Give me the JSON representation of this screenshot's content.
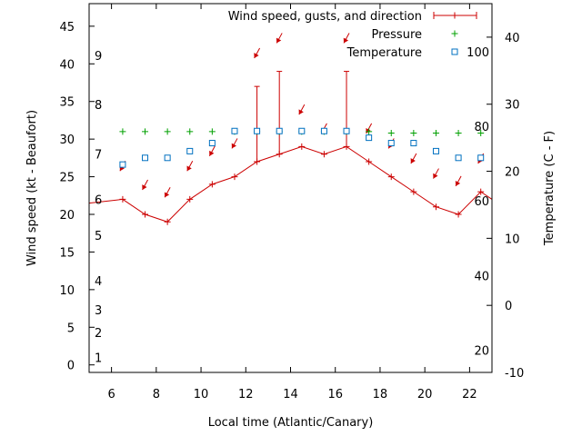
{
  "chart_data": {
    "type": "line",
    "xlabel": "Local time (Atlantic/Canary)",
    "ylabel_left": "Wind speed (kt - Beaufort)",
    "ylabel_right": "Temperature (C - F)",
    "xlim": [
      5,
      23
    ],
    "ylim_left": [
      -1,
      48
    ],
    "ylim_right": [
      -10,
      45
    ],
    "x_ticks": [
      6,
      8,
      10,
      12,
      14,
      16,
      18,
      20,
      22
    ],
    "y_left_ticks": [
      0,
      5,
      10,
      15,
      20,
      25,
      30,
      35,
      40,
      45
    ],
    "y_right_ticks": [
      -10,
      0,
      10,
      20,
      30,
      40
    ],
    "beaufort_labels": [
      {
        "label": "1",
        "kt": 1
      },
      {
        "label": "2",
        "kt": 4.3
      },
      {
        "label": "3",
        "kt": 7.3
      },
      {
        "label": "4",
        "kt": 11.2
      },
      {
        "label": "5",
        "kt": 17.2
      },
      {
        "label": "6",
        "kt": 22
      },
      {
        "label": "7",
        "kt": 28
      },
      {
        "label": "8",
        "kt": 34.6
      },
      {
        "label": "9",
        "kt": 41.1
      }
    ],
    "fahrenheit_labels": [
      {
        "label": "20",
        "celsius": -6.7
      },
      {
        "label": "40",
        "celsius": 4.4
      },
      {
        "label": "60",
        "celsius": 15.6
      },
      {
        "label": "80",
        "celsius": 26.7
      },
      {
        "label": "100",
        "celsius": 37.8
      }
    ],
    "legend_position": "top-right",
    "series": [
      {
        "name": "Wind speed, gusts, and direction",
        "axis": "left",
        "style": "line-with-points-and-gust-bars",
        "color": "#cc0000",
        "x": [
          5,
          6.5,
          7.5,
          8.5,
          9.5,
          10.5,
          11.5,
          12.5,
          13.5,
          14.5,
          15.5,
          16.5,
          17.5,
          18.5,
          19.5,
          20.5,
          21.5,
          22.5,
          23
        ],
        "values": [
          21.5,
          22,
          20,
          19,
          22,
          24,
          25,
          27,
          28,
          29,
          28,
          29,
          27,
          25,
          23,
          21,
          20,
          23,
          22
        ],
        "gusts": [
          null,
          null,
          null,
          null,
          null,
          null,
          null,
          37,
          39,
          null,
          null,
          39,
          null,
          null,
          null,
          null,
          null,
          null,
          null
        ],
        "arrow_positions": [
          {
            "x": 6.5,
            "kt": 26
          },
          {
            "x": 7.5,
            "kt": 23.5
          },
          {
            "x": 8.5,
            "kt": 22.5
          },
          {
            "x": 9.5,
            "kt": 26
          },
          {
            "x": 10.5,
            "kt": 28
          },
          {
            "x": 11.5,
            "kt": 29
          },
          {
            "x": 12.5,
            "kt": 41
          },
          {
            "x": 13.5,
            "kt": 43
          },
          {
            "x": 14.5,
            "kt": 33.5
          },
          {
            "x": 15.5,
            "kt": 31
          },
          {
            "x": 16.5,
            "kt": 43
          },
          {
            "x": 17.5,
            "kt": 31
          },
          {
            "x": 18.5,
            "kt": 29
          },
          {
            "x": 19.5,
            "kt": 27
          },
          {
            "x": 20.5,
            "kt": 25
          },
          {
            "x": 21.5,
            "kt": 24
          },
          {
            "x": 22.5,
            "kt": 27
          }
        ]
      },
      {
        "name": "Pressure",
        "axis": "left",
        "style": "points-plus",
        "color": "#00a000",
        "x": [
          6.5,
          7.5,
          8.5,
          9.5,
          10.5,
          11.5,
          12.5,
          13.5,
          14.5,
          15.5,
          16.5,
          17.5,
          18.5,
          19.5,
          20.5,
          21.5,
          22.5
        ],
        "values": [
          31,
          31,
          31,
          31,
          31,
          31,
          31,
          31,
          31,
          31,
          31,
          31,
          30.8,
          30.8,
          30.8,
          30.8,
          30.8
        ]
      },
      {
        "name": "Temperature",
        "axis": "right",
        "style": "points-open-square",
        "color": "#0070c0",
        "x": [
          6.5,
          7.5,
          8.5,
          9.5,
          10.5,
          11.5,
          12.5,
          13.5,
          14.5,
          15.5,
          16.5,
          17.5,
          18.5,
          19.5,
          20.5,
          21.5,
          22.5
        ],
        "values": [
          21,
          22,
          22,
          23,
          24.2,
          26,
          26,
          26,
          26,
          26,
          26,
          25,
          24.2,
          24.2,
          23,
          22,
          22
        ]
      }
    ]
  }
}
